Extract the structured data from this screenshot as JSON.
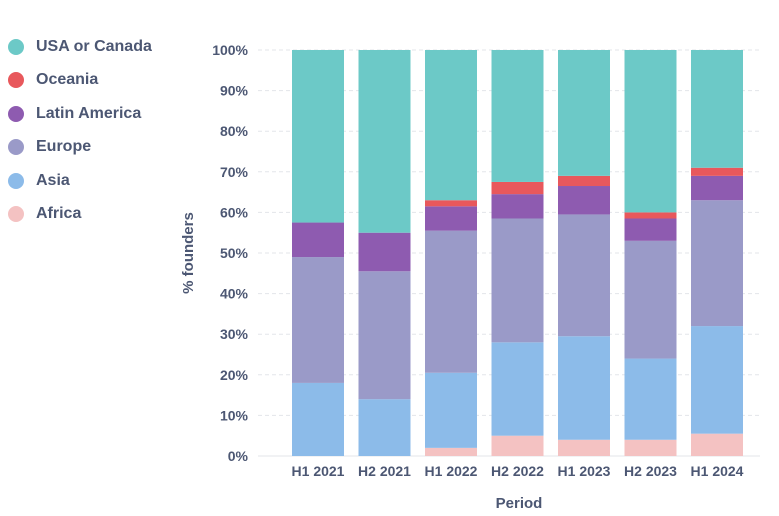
{
  "chart_data": {
    "type": "bar",
    "stacked": true,
    "categories": [
      "H1 2021",
      "H2 2021",
      "H1 2022",
      "H2 2022",
      "H1 2023",
      "H2 2023",
      "H1 2024"
    ],
    "series": [
      {
        "name": "Africa",
        "color": "#f4c2c2",
        "values": [
          0,
          0,
          2,
          5,
          4,
          4,
          5.5
        ]
      },
      {
        "name": "Asia",
        "color": "#8cbbe9",
        "values": [
          18,
          14,
          18.5,
          23,
          25.5,
          20,
          26.5
        ]
      },
      {
        "name": "Europe",
        "color": "#9a9ac8",
        "values": [
          31,
          31.5,
          35,
          30.5,
          30,
          29,
          31
        ]
      },
      {
        "name": "Latin America",
        "color": "#8e5bb0",
        "values": [
          8.5,
          9.5,
          6,
          6,
          7,
          5.5,
          6
        ]
      },
      {
        "name": "Oceania",
        "color": "#e8585c",
        "values": [
          0,
          0,
          1.5,
          3,
          2.5,
          1.5,
          2
        ]
      },
      {
        "name": "USA or Canada",
        "color": "#6cc9c7",
        "values": [
          42.5,
          45,
          37,
          32.5,
          31,
          40,
          29
        ]
      }
    ],
    "legend_order": [
      "USA or Canada",
      "Oceania",
      "Latin America",
      "Europe",
      "Asia",
      "Africa"
    ],
    "ylim": [
      0,
      100
    ],
    "yticks": [
      "0%",
      "10%",
      "20%",
      "30%",
      "40%",
      "50%",
      "60%",
      "70%",
      "80%",
      "90%",
      "100%"
    ],
    "xlabel": "Period",
    "ylabel": "% founders",
    "legend_position": "left",
    "grid": true
  }
}
